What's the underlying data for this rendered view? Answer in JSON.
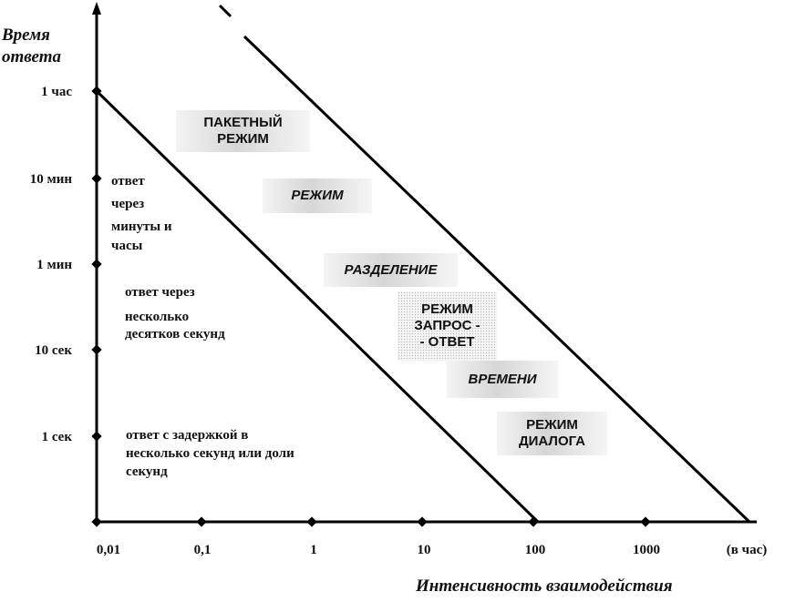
{
  "axes": {
    "y_title": [
      "Время",
      "ответа"
    ],
    "x_title": "Интенсивность взаимодействия",
    "y_ticks": [
      "1 час",
      "10 мин",
      "1 мин",
      "10 сек",
      "1 сек"
    ],
    "x_ticks": [
      "0,01",
      "0,1",
      "1",
      "10",
      "100",
      "1000"
    ],
    "x_unit": "(в час)"
  },
  "notes": {
    "minutes": [
      "ответ",
      "через",
      "минуты и",
      "часы"
    ],
    "tens_seconds": [
      "ответ через",
      "несколько",
      "десятков секунд"
    ],
    "seconds": [
      "ответ с задержкой в",
      "несколько секунд или доли",
      "секунд"
    ]
  },
  "regions": {
    "batch": [
      "ПАКЕТНЫЙ",
      "РЕЖИМ"
    ],
    "time_sharing": [
      "РЕЖИМ",
      "РАЗДЕЛЕНИЕ",
      "ВРЕМЕНИ"
    ],
    "query_response": [
      "РЕЖИМ",
      "ЗАПРОС -",
      "- ОТВЕТ"
    ],
    "dialog": [
      "РЕЖИМ",
      "ДИАЛОГА"
    ]
  }
}
